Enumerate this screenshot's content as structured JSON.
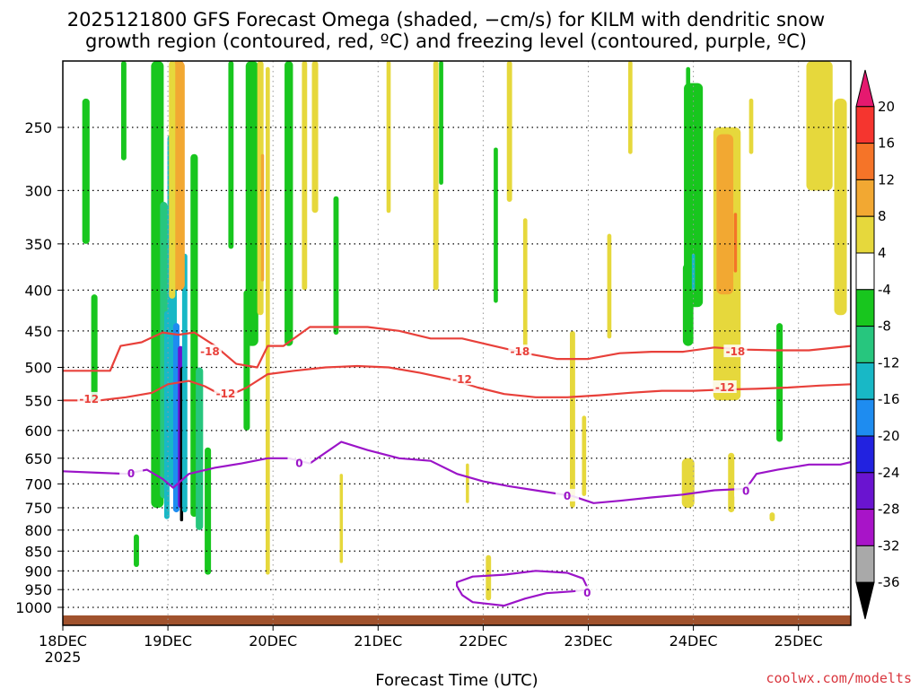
{
  "chart_data": {
    "type": "heatmap",
    "title_line1": "2025121800 GFS Forecast Omega (shaded, −cm/s) for KILM with dendritic snow",
    "title_line2": "growth region (contoured, red, ºC) and freezing level (contoured, purple, ºC)",
    "xlabel": "Forecast Time (UTC)",
    "ylabel": "",
    "credit": "coolwx.com/modelts",
    "x_ticks": [
      "18DEC",
      "19DEC",
      "20DEC",
      "21DEC",
      "22DEC",
      "23DEC",
      "24DEC",
      "25DEC"
    ],
    "x_year": "2025",
    "x_range_days": [
      0,
      7.5
    ],
    "y_ticks": [
      "250",
      "300",
      "350",
      "400",
      "450",
      "500",
      "550",
      "600",
      "650",
      "700",
      "750",
      "800",
      "850",
      "900",
      "950",
      "1000"
    ],
    "y_range_hpa": [
      200,
      1025
    ],
    "colorbar": {
      "labels": [
        "20",
        "16",
        "12",
        "8",
        "4",
        "-4",
        "-8",
        "-12",
        "-16",
        "-20",
        "-24",
        "-28",
        "-32",
        "-36"
      ],
      "colors": [
        "#e5196f",
        "#f5352f",
        "#f57428",
        "#f2a832",
        "#e6d83c",
        "#ffffff",
        "#18c61e",
        "#27c67e",
        "#18b8c6",
        "#1e8cf0",
        "#2222e0",
        "#6a14d0",
        "#a814c8",
        "#a9a9a9",
        "#000000"
      ]
    },
    "shading_cells": [
      {
        "t": 0.22,
        "p": 290,
        "w": 0.07,
        "h": 120,
        "color": "#18c61e"
      },
      {
        "t": 0.3,
        "p": 480,
        "w": 0.06,
        "h": 150,
        "color": "#18c61e"
      },
      {
        "t": 0.58,
        "p": 230,
        "w": 0.05,
        "h": 90,
        "color": "#18c61e"
      },
      {
        "t": 0.7,
        "p": 850,
        "w": 0.05,
        "h": 80,
        "color": "#18c61e"
      },
      {
        "t": 0.9,
        "p": 470,
        "w": 0.12,
        "h": 560,
        "color": "#18c61e"
      },
      {
        "t": 0.96,
        "p": 520,
        "w": 0.07,
        "h": 420,
        "color": "#27c67e"
      },
      {
        "t": 0.99,
        "p": 600,
        "w": 0.05,
        "h": 350,
        "color": "#18b8c6"
      },
      {
        "t": 1.04,
        "p": 480,
        "w": 0.09,
        "h": 450,
        "color": "#18b8c6"
      },
      {
        "t": 1.08,
        "p": 600,
        "w": 0.06,
        "h": 320,
        "color": "#1e8cf0"
      },
      {
        "t": 1.12,
        "p": 610,
        "w": 0.05,
        "h": 280,
        "color": "#6a14d0"
      },
      {
        "t": 1.13,
        "p": 640,
        "w": 0.03,
        "h": 280,
        "color": "#000000"
      },
      {
        "t": 1.16,
        "p": 560,
        "w": 0.05,
        "h": 400,
        "color": "#18b8c6"
      },
      {
        "t": 1.12,
        "p": 290,
        "w": 0.06,
        "h": 200,
        "color": "#f5352f"
      },
      {
        "t": 1.1,
        "p": 300,
        "w": 0.12,
        "h": 200,
        "color": "#f2a832"
      },
      {
        "t": 1.04,
        "p": 300,
        "w": 0.06,
        "h": 220,
        "color": "#e6d83c"
      },
      {
        "t": 1.25,
        "p": 520,
        "w": 0.07,
        "h": 500,
        "color": "#18c61e"
      },
      {
        "t": 1.3,
        "p": 650,
        "w": 0.07,
        "h": 300,
        "color": "#27c67e"
      },
      {
        "t": 1.38,
        "p": 770,
        "w": 0.06,
        "h": 280,
        "color": "#18c61e"
      },
      {
        "t": 1.6,
        "p": 280,
        "w": 0.05,
        "h": 150,
        "color": "#18c61e"
      },
      {
        "t": 1.8,
        "p": 320,
        "w": 0.12,
        "h": 300,
        "color": "#18c61e"
      },
      {
        "t": 1.75,
        "p": 500,
        "w": 0.06,
        "h": 200,
        "color": "#18c61e"
      },
      {
        "t": 1.88,
        "p": 300,
        "w": 0.06,
        "h": 260,
        "color": "#e6d83c"
      },
      {
        "t": 1.9,
        "p": 330,
        "w": 0.03,
        "h": 120,
        "color": "#f2a832"
      },
      {
        "t": 1.95,
        "p": 560,
        "w": 0.04,
        "h": 700,
        "color": "#e6d83c"
      },
      {
        "t": 2.15,
        "p": 320,
        "w": 0.08,
        "h": 300,
        "color": "#18c61e"
      },
      {
        "t": 2.3,
        "p": 300,
        "w": 0.05,
        "h": 200,
        "color": "#e6d83c"
      },
      {
        "t": 2.4,
        "p": 260,
        "w": 0.06,
        "h": 120,
        "color": "#e6d83c"
      },
      {
        "t": 2.6,
        "p": 380,
        "w": 0.05,
        "h": 150,
        "color": "#18c61e"
      },
      {
        "t": 2.65,
        "p": 780,
        "w": 0.03,
        "h": 200,
        "color": "#e6d83c"
      },
      {
        "t": 3.1,
        "p": 260,
        "w": 0.04,
        "h": 120,
        "color": "#e6d83c"
      },
      {
        "t": 3.55,
        "p": 300,
        "w": 0.05,
        "h": 200,
        "color": "#e6d83c"
      },
      {
        "t": 3.6,
        "p": 250,
        "w": 0.04,
        "h": 90,
        "color": "#18c61e"
      },
      {
        "t": 3.85,
        "p": 700,
        "w": 0.03,
        "h": 80,
        "color": "#e6d83c"
      },
      {
        "t": 4.12,
        "p": 340,
        "w": 0.04,
        "h": 150,
        "color": "#18c61e"
      },
      {
        "t": 4.25,
        "p": 250,
        "w": 0.05,
        "h": 120,
        "color": "#e6d83c"
      },
      {
        "t": 4.4,
        "p": 400,
        "w": 0.04,
        "h": 150,
        "color": "#e6d83c"
      },
      {
        "t": 4.05,
        "p": 920,
        "w": 0.05,
        "h": 120,
        "color": "#e6d83c"
      },
      {
        "t": 4.85,
        "p": 600,
        "w": 0.05,
        "h": 300,
        "color": "#e6d83c"
      },
      {
        "t": 4.96,
        "p": 650,
        "w": 0.04,
        "h": 150,
        "color": "#e6d83c"
      },
      {
        "t": 5.2,
        "p": 400,
        "w": 0.04,
        "h": 120,
        "color": "#e6d83c"
      },
      {
        "t": 5.4,
        "p": 230,
        "w": 0.04,
        "h": 80,
        "color": "#e6d83c"
      },
      {
        "t": 5.95,
        "p": 250,
        "w": 0.04,
        "h": 80,
        "color": "#18c61e"
      },
      {
        "t": 6.0,
        "p": 320,
        "w": 0.18,
        "h": 200,
        "color": "#18c61e"
      },
      {
        "t": 5.95,
        "p": 420,
        "w": 0.1,
        "h": 100,
        "color": "#18c61e"
      },
      {
        "t": 6.0,
        "p": 380,
        "w": 0.03,
        "h": 40,
        "color": "#18b8c6"
      },
      {
        "t": 5.95,
        "p": 700,
        "w": 0.12,
        "h": 100,
        "color": "#e6d83c"
      },
      {
        "t": 6.32,
        "p": 400,
        "w": 0.26,
        "h": 300,
        "color": "#e6d83c"
      },
      {
        "t": 6.3,
        "p": 330,
        "w": 0.16,
        "h": 150,
        "color": "#f2a832"
      },
      {
        "t": 6.4,
        "p": 350,
        "w": 0.03,
        "h": 60,
        "color": "#f57428"
      },
      {
        "t": 6.36,
        "p": 700,
        "w": 0.06,
        "h": 120,
        "color": "#e6d83c"
      },
      {
        "t": 6.55,
        "p": 250,
        "w": 0.04,
        "h": 40,
        "color": "#e6d83c"
      },
      {
        "t": 6.82,
        "p": 530,
        "w": 0.06,
        "h": 180,
        "color": "#18c61e"
      },
      {
        "t": 7.2,
        "p": 250,
        "w": 0.25,
        "h": 100,
        "color": "#e6d83c"
      },
      {
        "t": 7.4,
        "p": 330,
        "w": 0.12,
        "h": 200,
        "color": "#e6d83c"
      },
      {
        "t": 6.75,
        "p": 770,
        "w": 0.05,
        "h": 20,
        "color": "#e6d83c"
      }
    ],
    "contours": [
      {
        "label": "-18",
        "color": "#e8403a",
        "kind": "dgz",
        "label_at": [
          [
            1.4,
            478
          ],
          [
            4.35,
            478
          ],
          [
            6.4,
            478
          ]
        ],
        "points": [
          [
            0,
            505
          ],
          [
            0.45,
            505
          ],
          [
            0.55,
            470
          ],
          [
            0.75,
            465
          ],
          [
            0.95,
            452
          ],
          [
            1.1,
            455
          ],
          [
            1.25,
            452
          ],
          [
            1.45,
            470
          ],
          [
            1.65,
            495
          ],
          [
            1.85,
            500
          ],
          [
            1.95,
            470
          ],
          [
            2.1,
            470
          ],
          [
            2.35,
            445
          ],
          [
            2.65,
            445
          ],
          [
            2.9,
            445
          ],
          [
            3.2,
            450
          ],
          [
            3.5,
            460
          ],
          [
            3.8,
            460
          ],
          [
            4.1,
            470
          ],
          [
            4.4,
            480
          ],
          [
            4.7,
            488
          ],
          [
            5.0,
            488
          ],
          [
            5.3,
            480
          ],
          [
            5.6,
            478
          ],
          [
            5.9,
            478
          ],
          [
            6.2,
            472
          ],
          [
            6.5,
            475
          ],
          [
            6.8,
            476
          ],
          [
            7.1,
            476
          ],
          [
            7.5,
            470
          ]
        ]
      },
      {
        "label": "-12",
        "color": "#e8403a",
        "kind": "dgz",
        "label_at": [
          [
            0.25,
            548
          ],
          [
            1.55,
            540
          ],
          [
            3.8,
            518
          ],
          [
            6.3,
            530
          ]
        ],
        "points": [
          [
            0,
            550
          ],
          [
            0.35,
            550
          ],
          [
            0.6,
            545
          ],
          [
            0.85,
            538
          ],
          [
            1.0,
            525
          ],
          [
            1.2,
            520
          ],
          [
            1.35,
            528
          ],
          [
            1.55,
            545
          ],
          [
            1.75,
            530
          ],
          [
            1.95,
            510
          ],
          [
            2.2,
            505
          ],
          [
            2.5,
            500
          ],
          [
            2.8,
            498
          ],
          [
            3.1,
            500
          ],
          [
            3.4,
            508
          ],
          [
            3.7,
            518
          ],
          [
            3.95,
            530
          ],
          [
            4.2,
            540
          ],
          [
            4.5,
            545
          ],
          [
            4.8,
            545
          ],
          [
            5.1,
            542
          ],
          [
            5.4,
            538
          ],
          [
            5.7,
            535
          ],
          [
            6.0,
            535
          ],
          [
            6.3,
            533
          ],
          [
            6.6,
            532
          ],
          [
            6.9,
            530
          ],
          [
            7.2,
            527
          ],
          [
            7.5,
            525
          ]
        ]
      },
      {
        "label": "0",
        "color": "#9b14c8",
        "kind": "fzl",
        "label_at": [
          [
            0.65,
            680
          ],
          [
            2.25,
            660
          ],
          [
            4.8,
            725
          ],
          [
            6.5,
            715
          ]
        ],
        "points": [
          [
            0,
            675
          ],
          [
            0.35,
            678
          ],
          [
            0.6,
            680
          ],
          [
            0.8,
            672
          ],
          [
            0.95,
            690
          ],
          [
            1.05,
            708
          ],
          [
            1.2,
            680
          ],
          [
            1.45,
            668
          ],
          [
            1.7,
            660
          ],
          [
            1.95,
            650
          ],
          [
            2.15,
            650
          ],
          [
            2.35,
            660
          ],
          [
            2.65,
            620
          ],
          [
            2.9,
            635
          ],
          [
            3.2,
            650
          ],
          [
            3.5,
            655
          ],
          [
            3.75,
            680
          ],
          [
            4.0,
            695
          ],
          [
            4.25,
            705
          ],
          [
            4.55,
            715
          ],
          [
            4.85,
            725
          ],
          [
            5.05,
            740
          ],
          [
            5.3,
            735
          ],
          [
            5.6,
            728
          ],
          [
            5.9,
            722
          ],
          [
            6.2,
            713
          ],
          [
            6.5,
            710
          ],
          [
            6.6,
            680
          ],
          [
            6.8,
            672
          ],
          [
            7.1,
            662
          ],
          [
            7.4,
            662
          ],
          [
            7.5,
            657
          ]
        ]
      },
      {
        "label": "0",
        "color": "#9b14c8",
        "kind": "fzl_loop",
        "label_at": [
          [
            4.99,
            960
          ]
        ],
        "points": [
          [
            3.75,
            930
          ],
          [
            3.9,
            915
          ],
          [
            4.2,
            910
          ],
          [
            4.5,
            900
          ],
          [
            4.8,
            905
          ],
          [
            4.95,
            920
          ],
          [
            5.0,
            950
          ],
          [
            4.85,
            955
          ],
          [
            4.6,
            960
          ],
          [
            4.4,
            975
          ],
          [
            4.2,
            995
          ],
          [
            3.9,
            985
          ],
          [
            3.8,
            965
          ],
          [
            3.75,
            940
          ]
        ]
      }
    ]
  }
}
